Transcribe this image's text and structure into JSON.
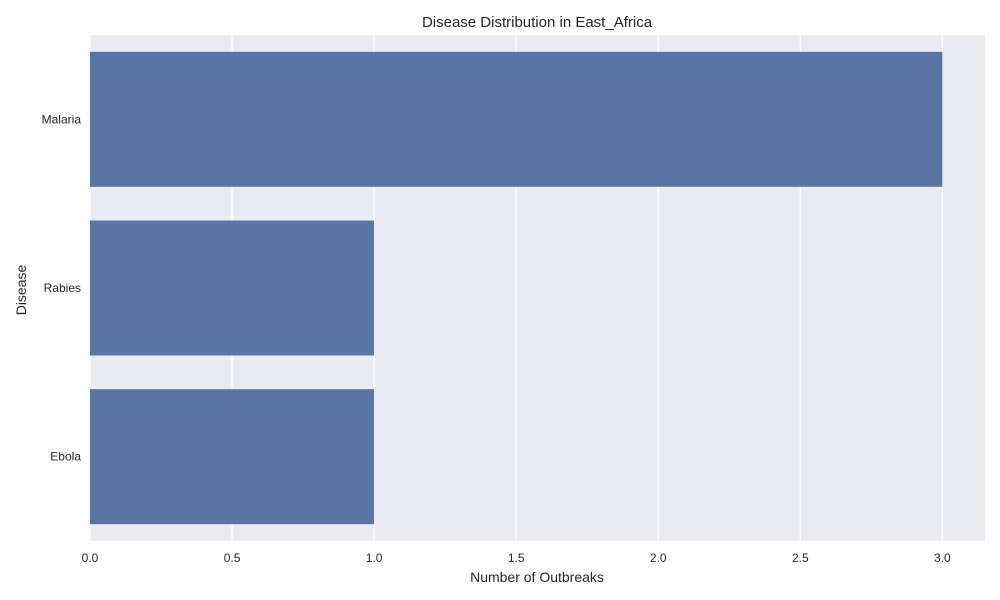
{
  "chart_data": {
    "type": "bar",
    "orientation": "horizontal",
    "title": "Disease Distribution in East_Africa",
    "xlabel": "Number of Outbreaks",
    "ylabel": "Disease",
    "categories": [
      "Malaria",
      "Rabies",
      "Ebola"
    ],
    "values": [
      3,
      1,
      1
    ],
    "xlim": [
      0,
      3.15
    ],
    "xticks": [
      "0.0",
      "0.5",
      "1.0",
      "1.5",
      "2.0",
      "2.5",
      "3.0"
    ],
    "xtick_values": [
      0,
      0.5,
      1.0,
      1.5,
      2.0,
      2.5,
      3.0
    ],
    "grid": true,
    "colors": {
      "bar": "#5975a4",
      "plot_background": "#eaeaf2",
      "grid": "#ffffff"
    }
  }
}
